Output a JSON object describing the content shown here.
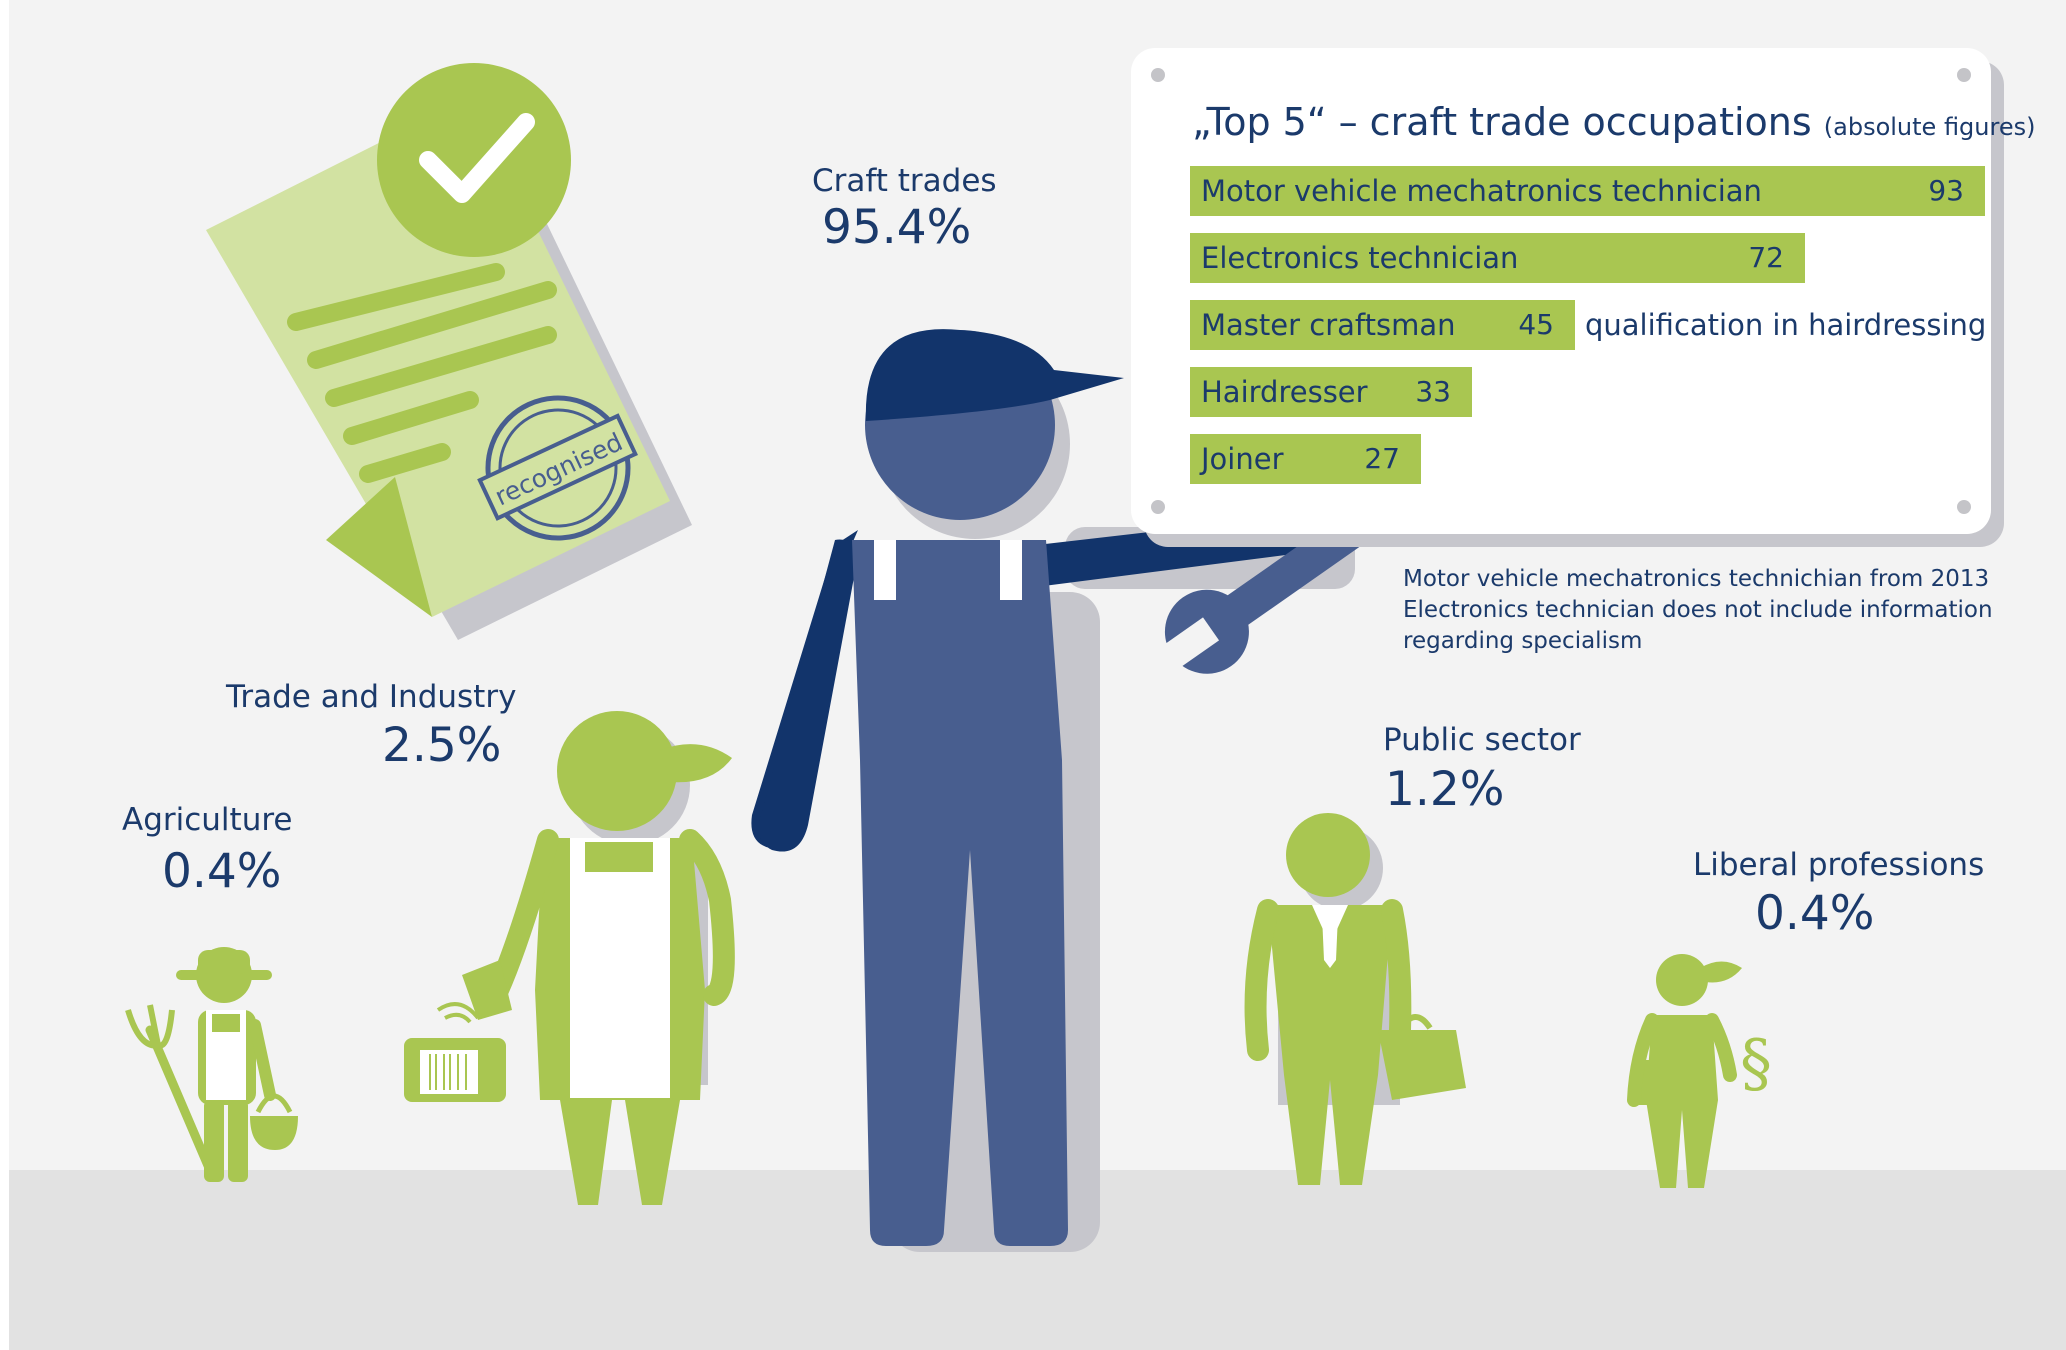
{
  "colors": {
    "background": "#f3f3f3",
    "floor": "#e2e2e2",
    "navy": "#1b3a6b",
    "blue_figure": "#485e8f",
    "dark_navy": "#12346b",
    "green": "#a9c651",
    "light_green": "#d2e2a2",
    "shadow": "#c6c6cc",
    "white": "#ffffff"
  },
  "document": {
    "stamp_text": "recognised",
    "icons": [
      "document-icon",
      "checkmark-icon",
      "stamp-icon"
    ]
  },
  "sectors": [
    {
      "name": "Craft trades",
      "value": "95.4%",
      "percent": 95.4
    },
    {
      "name": "Trade and Industry",
      "value": "2.5%",
      "percent": 2.5
    },
    {
      "name": "Agriculture",
      "value": "0.4%",
      "percent": 0.4
    },
    {
      "name": "Public sector",
      "value": "1.2%",
      "percent": 1.2
    },
    {
      "name": "Liberal professions",
      "value": "0.4%",
      "percent": 0.4
    }
  ],
  "chart_data": {
    "type": "bar",
    "orientation": "horizontal",
    "title": "„Top 5“ – craft trade occupations",
    "subtitle": "(absolute figures)",
    "categories": [
      "Motor vehicle mechatronics technician",
      "Electronics technician",
      "Master craftsman qualification in hairdressing",
      "Hairdresser",
      "Joiner"
    ],
    "display_labels": [
      {
        "inside": "Motor vehicle mechatronics technician",
        "outside": ""
      },
      {
        "inside": "Electronics technician",
        "outside": ""
      },
      {
        "inside": "Master craftsman",
        "outside": "qualification in hairdressing"
      },
      {
        "inside": "Hairdresser",
        "outside": ""
      },
      {
        "inside": "Joiner",
        "outside": ""
      }
    ],
    "values": [
      93,
      72,
      45,
      33,
      27
    ],
    "xlim": [
      0,
      93
    ],
    "grid": false,
    "legend": "none",
    "bar_color": "#a9c651"
  },
  "notes": [
    "Motor vehicle mechatronics technichian from 2013",
    "Electronics technician does not include information",
    "regarding specialism"
  ]
}
